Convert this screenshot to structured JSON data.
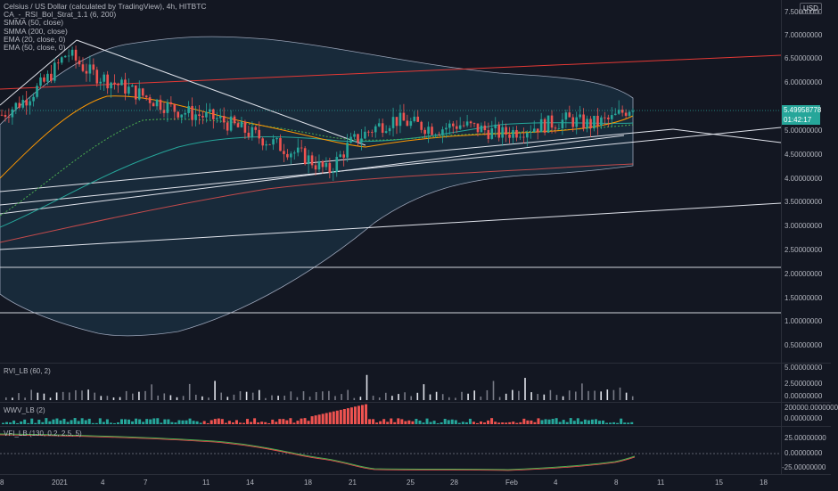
{
  "legend": {
    "title": "Celsius / US Dollar (calculated by TradingView), 4h, HITBTC",
    "indicators": [
      "CA_-_RSI_Bol_Strat_1.1 (6, 200)",
      "SMMA (50, close)",
      "SMMA (200, close)",
      "EMA (20, close, 0)",
      "EMA (50, close, 0)"
    ]
  },
  "currency_badge": "USD",
  "current_price": {
    "price": "5.49958778",
    "countdown": "01:42:17"
  },
  "price_axis_labels": [
    "7.50000000",
    "7.00000000",
    "6.50000000",
    "6.00000000",
    "5.00000000",
    "4.50000000",
    "4.00000000",
    "3.50000000",
    "3.00000000",
    "2.50000000",
    "2.00000000",
    "1.50000000",
    "1.00000000",
    "0.50000000"
  ],
  "time_axis_labels": [
    "8",
    "2021",
    "4",
    "7",
    "11",
    "14",
    "18",
    "21",
    "25",
    "28",
    "Feb",
    "4",
    "8",
    "11",
    "15",
    "18"
  ],
  "panes": {
    "rvi": {
      "title": "RVI_LB (60, 2)",
      "axis": [
        "5.00000000",
        "2.50000000",
        "0.00000000"
      ]
    },
    "wwv": {
      "title": "WWV_LB (2)",
      "axis": [
        "200000.0000000",
        "0.00000000"
      ]
    },
    "vfi": {
      "title": "VFI_LB (130, 0.2, 2.5, 5)",
      "axis": [
        "25.00000000",
        "0.00000000",
        "-25.00000000"
      ]
    }
  },
  "colors": {
    "background": "#131722",
    "up": "#26a69a",
    "down": "#ef5350",
    "band_fill": "#1e3a4f",
    "trendline": "#ffffff",
    "resistance": "#e53935"
  },
  "chart_data": {
    "type": "candlestick",
    "symbol": "Celsius / US Dollar",
    "interval": "4h",
    "exchange": "HITBTC",
    "y_axis": {
      "min": 0.5,
      "max": 7.5,
      "label_step": 0.5
    },
    "x_ticks": [
      "8",
      "2021",
      "4",
      "7",
      "11",
      "14",
      "18",
      "21",
      "25",
      "28",
      "Feb",
      "4",
      "8",
      "11",
      "15",
      "18"
    ],
    "last_price": 5.49958778,
    "horizontal_levels": [
      2.1,
      1.2
    ],
    "approx_close_path": [
      5.3,
      5.6,
      6.0,
      6.6,
      6.2,
      6.0,
      5.8,
      5.6,
      5.4,
      5.3,
      5.2,
      5.0,
      4.8,
      4.6,
      4.4,
      4.1,
      4.7,
      5.0,
      5.2,
      5.1,
      5.0,
      5.1,
      5.0,
      4.9,
      5.0,
      5.1,
      5.2,
      5.1,
      5.2,
      5.5
    ]
  }
}
